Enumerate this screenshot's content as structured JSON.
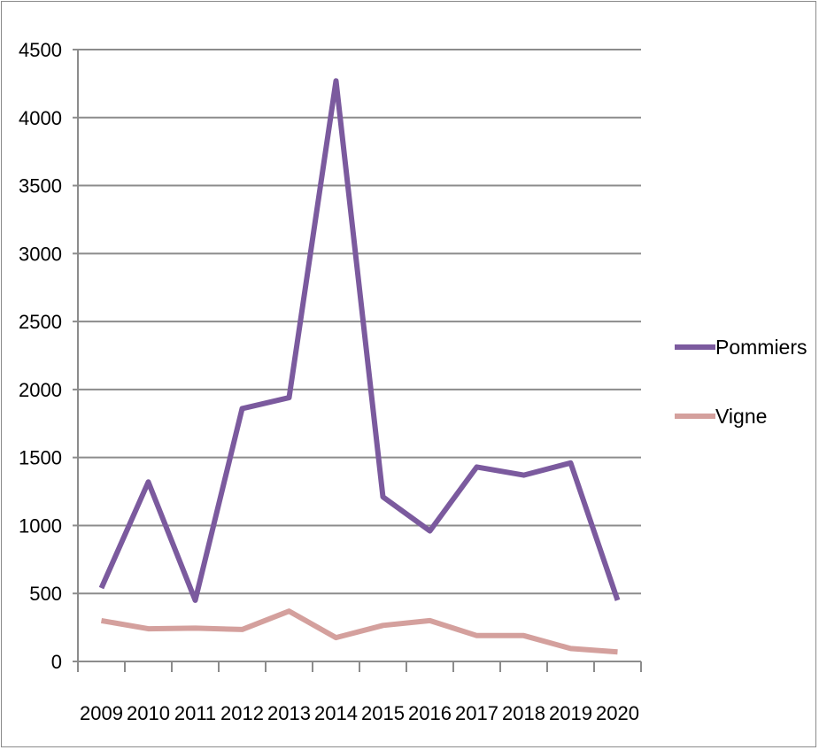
{
  "chart_data": {
    "type": "line",
    "title": "",
    "xlabel": "",
    "ylabel": "",
    "categories": [
      "2009",
      "2010",
      "2011",
      "2012",
      "2013",
      "2014",
      "2015",
      "2016",
      "2017",
      "2018",
      "2019",
      "2020"
    ],
    "ylim": [
      0,
      4500
    ],
    "yticks": [
      0,
      500,
      1000,
      1500,
      2000,
      2500,
      3000,
      3500,
      4000,
      4500
    ],
    "grid": true,
    "legend_position": "right",
    "series": [
      {
        "name": "Pommiers",
        "color": "#7b5a9e",
        "values": [
          540,
          1320,
          450,
          1860,
          1940,
          4270,
          1210,
          960,
          1430,
          1370,
          1460,
          450
        ]
      },
      {
        "name": "Vigne",
        "color": "#d4a09d",
        "values": [
          300,
          240,
          245,
          235,
          370,
          175,
          265,
          300,
          190,
          190,
          95,
          70
        ]
      }
    ]
  }
}
